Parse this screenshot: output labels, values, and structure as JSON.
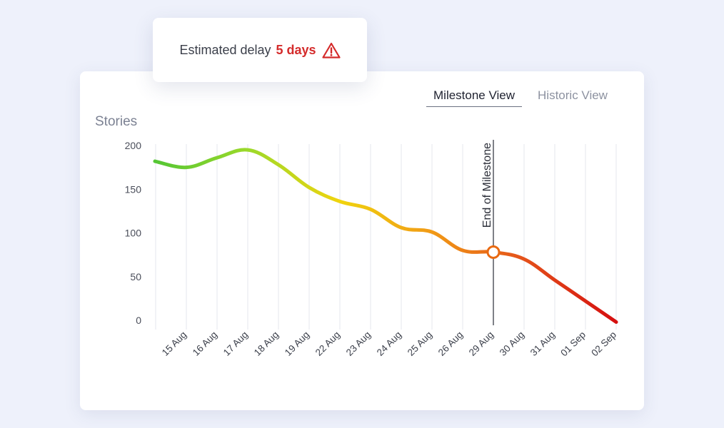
{
  "alert": {
    "label": "Estimated delay",
    "value": "5 days",
    "icon": "warning-triangle-icon",
    "color": "#d42b2b"
  },
  "tabs": [
    {
      "label": "Milestone View",
      "active": true
    },
    {
      "label": "Historic View",
      "active": false
    }
  ],
  "chart_data": {
    "type": "line",
    "ylabel": "Stories",
    "ylim": [
      0,
      200
    ],
    "yticks": [
      0,
      50,
      100,
      150,
      200
    ],
    "categories": [
      "15 Aug",
      "16 Aug",
      "17 Aug",
      "18 Aug",
      "19 Aug",
      "22 Aug",
      "23 Aug",
      "24 Aug",
      "25 Aug",
      "26 Aug",
      "29 Aug",
      "30 Aug",
      "31 Aug",
      "01 Sep",
      "02 Sep"
    ],
    "series": [
      {
        "x": [
          "15 Aug",
          "16 Aug",
          "17 Aug",
          "18 Aug",
          "19 Aug",
          "22 Aug",
          "23 Aug",
          "24 Aug",
          "25 Aug",
          "26 Aug",
          "29 Aug",
          "30 Aug",
          "31 Aug",
          "01 Sep",
          "02 Sep"
        ],
        "values": [
          175,
          186,
          195,
          178,
          152,
          136,
          127,
          106,
          101,
          80,
          78,
          70,
          46,
          22,
          -2
        ]
      }
    ],
    "start_point": {
      "x_before": "15 Aug",
      "value": 182
    },
    "milestone": {
      "label": "End of Milestone",
      "x": "29 Aug",
      "value": 78
    },
    "gradient_colors": [
      "#55c634",
      "#9bd92a",
      "#f0d40e",
      "#f19a16",
      "#e4511a",
      "#d50f0f"
    ],
    "grid_vertical": true,
    "grid_horizontal": false
  }
}
